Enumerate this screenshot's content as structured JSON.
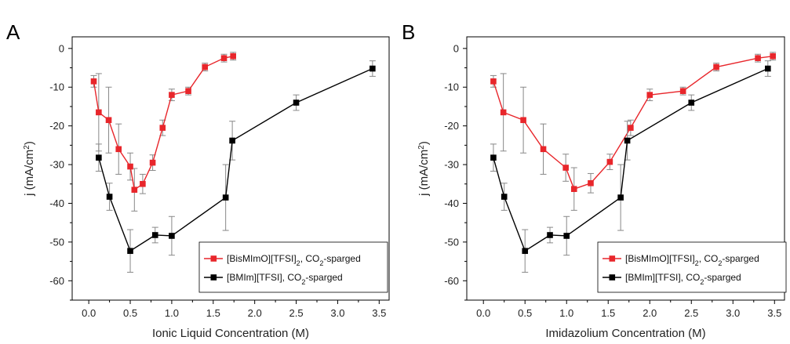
{
  "chart_data": [
    {
      "type": "line",
      "panel_label": "A",
      "xlabel": "Ionic Liquid Concentration (M)",
      "ylabel": "j (mA/cm",
      "ylabel_sup": "2",
      "ylabel_tail": ")",
      "xlim": [
        -0.2,
        3.62
      ],
      "ylim": [
        -65,
        3
      ],
      "xticks": [
        0.0,
        0.5,
        1.0,
        1.5,
        2.0,
        2.5,
        3.0,
        3.5
      ],
      "xtick_labels": [
        "0.0",
        "0.5",
        "1.0",
        "1.5",
        "2.0",
        "2.5",
        "3.0",
        "3.5"
      ],
      "yticks": [
        0,
        -10,
        -20,
        -30,
        -40,
        -50,
        -60
      ],
      "ytick_labels": [
        "0",
        "-10",
        "-20",
        "-30",
        "-40",
        "-50",
        "-60"
      ],
      "legend_position": "bottom-right",
      "series": [
        {
          "name_pre": "[BisMImO][TFSI]",
          "name_sub1": "2",
          "name_mid": ", CO",
          "name_sub2": "2",
          "name_post": "-sparged",
          "color": "#e8262b",
          "x": [
            0.06,
            0.12,
            0.24,
            0.36,
            0.5,
            0.55,
            0.65,
            0.77,
            0.89,
            1.0,
            1.2,
            1.4,
            1.63,
            1.74
          ],
          "y": [
            -8.5,
            -16.5,
            -18.5,
            -26,
            -30.5,
            -36.5,
            -35,
            -29.5,
            -20.5,
            -12,
            -11,
            -4.8,
            -2.5,
            -2
          ],
          "err": [
            1.5,
            10,
            8.5,
            6.5,
            3.5,
            5.5,
            2.5,
            2,
            2,
            1.5,
            1,
            1,
            1,
            1
          ]
        },
        {
          "name_pre": "[BMIm][TFSI], CO",
          "name_sub1": "",
          "name_mid": "",
          "name_sub2": "2",
          "name_post": "-sparged",
          "color": "#000000",
          "x": [
            0.12,
            0.25,
            0.5,
            0.8,
            1.0,
            1.65,
            1.73,
            2.5,
            3.42
          ],
          "y": [
            -28.2,
            -38.3,
            -52.3,
            -48.2,
            -48.4,
            -38.5,
            -23.8,
            -14,
            -5.2
          ],
          "err": [
            3.5,
            3.5,
            5.5,
            2,
            5,
            8.5,
            5,
            2,
            2
          ]
        }
      ]
    },
    {
      "type": "line",
      "panel_label": "B",
      "xlabel": "Imidazolium Concentration (M)",
      "ylabel": "j (mA/cm",
      "ylabel_sup": "2",
      "ylabel_tail": ")",
      "xlim": [
        -0.2,
        3.62
      ],
      "ylim": [
        -65,
        3
      ],
      "xticks": [
        0.0,
        0.5,
        1.0,
        1.5,
        2.0,
        2.5,
        3.0,
        3.5
      ],
      "xtick_labels": [
        "0.0",
        "0.5",
        "1.0",
        "1.5",
        "2.0",
        "2.5",
        "3.0",
        "3.5"
      ],
      "yticks": [
        0,
        -10,
        -20,
        -30,
        -40,
        -50,
        -60
      ],
      "ytick_labels": [
        "0",
        "-10",
        "-20",
        "-30",
        "-40",
        "-50",
        "-60"
      ],
      "legend_position": "bottom-right",
      "series": [
        {
          "name_pre": "[BisMImO][TFSI]",
          "name_sub1": "2",
          "name_mid": ", CO",
          "name_sub2": "2",
          "name_post": "-sparged",
          "color": "#e8262b",
          "x": [
            0.12,
            0.24,
            0.48,
            0.72,
            0.99,
            1.09,
            1.29,
            1.52,
            1.77,
            2.0,
            2.4,
            2.8,
            3.3,
            3.48
          ],
          "y": [
            -8.5,
            -16.5,
            -18.5,
            -26,
            -30.8,
            -36.3,
            -34.8,
            -29.3,
            -20.5,
            -12,
            -11,
            -4.8,
            -2.5,
            -2
          ],
          "err": [
            1.5,
            10,
            8.5,
            6.5,
            3.5,
            5.5,
            2.5,
            2,
            2,
            1.5,
            1,
            1,
            1,
            1
          ]
        },
        {
          "name_pre": "[BMIm][TFSI], CO",
          "name_sub1": "",
          "name_mid": "",
          "name_sub2": "2",
          "name_post": "-sparged",
          "color": "#000000",
          "x": [
            0.12,
            0.25,
            0.5,
            0.8,
            1.0,
            1.65,
            1.73,
            2.5,
            3.42
          ],
          "y": [
            -28.2,
            -38.3,
            -52.3,
            -48.2,
            -48.4,
            -38.5,
            -23.8,
            -14,
            -5.2
          ],
          "err": [
            3.5,
            3.5,
            5.5,
            2,
            5,
            8.5,
            5,
            2,
            2
          ]
        }
      ]
    }
  ]
}
